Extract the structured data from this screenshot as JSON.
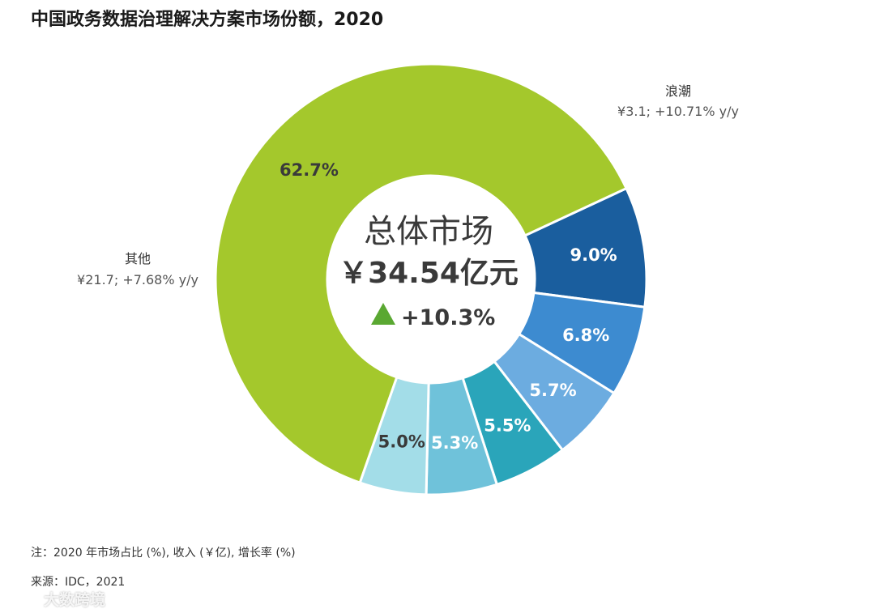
{
  "title": "中国政务数据治理解决方案市场份额，2020",
  "center": {
    "title": "总体市场",
    "total": "￥34.54亿元",
    "growth": "+10.3%",
    "growth_color": "#5aa832"
  },
  "chart_data": {
    "type": "pie",
    "subtype": "donut",
    "title": "中国政务数据治理解决方案市场份额，2020",
    "unit": "%",
    "slices": [
      {
        "label": "浪潮",
        "value": 9.0,
        "display": "9.0%",
        "color": "#1a5e9e",
        "revenue": "¥3.1; +10.71% y/y"
      },
      {
        "label": "",
        "value": 6.8,
        "display": "6.8%",
        "color": "#3d8bd0"
      },
      {
        "label": "",
        "value": 5.7,
        "display": "5.7%",
        "color": "#6cace0"
      },
      {
        "label": "",
        "value": 5.5,
        "display": "5.5%",
        "color": "#2aa5ba"
      },
      {
        "label": "",
        "value": 5.3,
        "display": "5.3%",
        "color": "#6fc2da"
      },
      {
        "label": "",
        "value": 5.0,
        "display": "5.0%",
        "color": "#a3dde8"
      },
      {
        "label": "其他",
        "value": 62.7,
        "display": "62.7%",
        "color": "#a4c82c",
        "revenue": "¥21.7; +7.68% y/y"
      }
    ]
  },
  "notes": {
    "note": "注：2020 年市场占比 (%), 收入 (￥亿), 增长率 (%)",
    "source": "来源：IDC，2021"
  },
  "watermark": "大数跨境"
}
